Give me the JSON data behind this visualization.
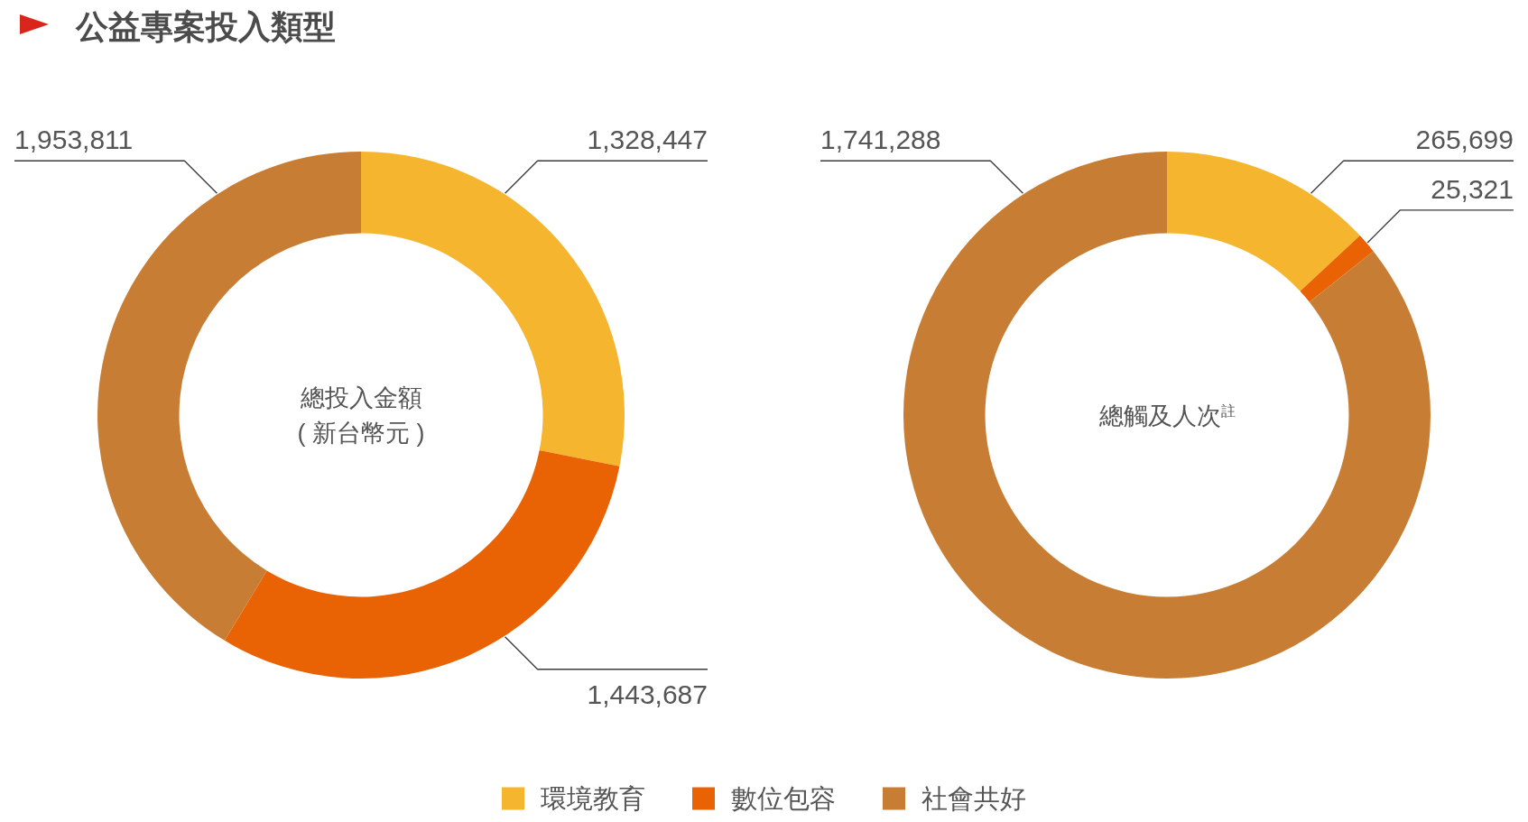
{
  "chart_data": {
    "type": "donut",
    "title": "公益專案投入類型",
    "categories": [
      "環境教育",
      "數位包容",
      "社會共好"
    ],
    "colors": [
      "#f6b52f",
      "#e96204",
      "#c77e34"
    ],
    "legend": "bottom",
    "series": [
      {
        "name": "總投入金額\n( 新台幣元 )",
        "values": [
          1328447,
          1443687,
          1953811
        ],
        "value_labels": [
          "1,328,447",
          "1,443,687",
          "1,953,811"
        ]
      },
      {
        "name": "總觸及人次$^{註}$",
        "values": [
          265699,
          25321,
          1741288
        ],
        "value_labels": [
          "265,699",
          "25,321",
          "1,741,288"
        ]
      }
    ]
  }
}
